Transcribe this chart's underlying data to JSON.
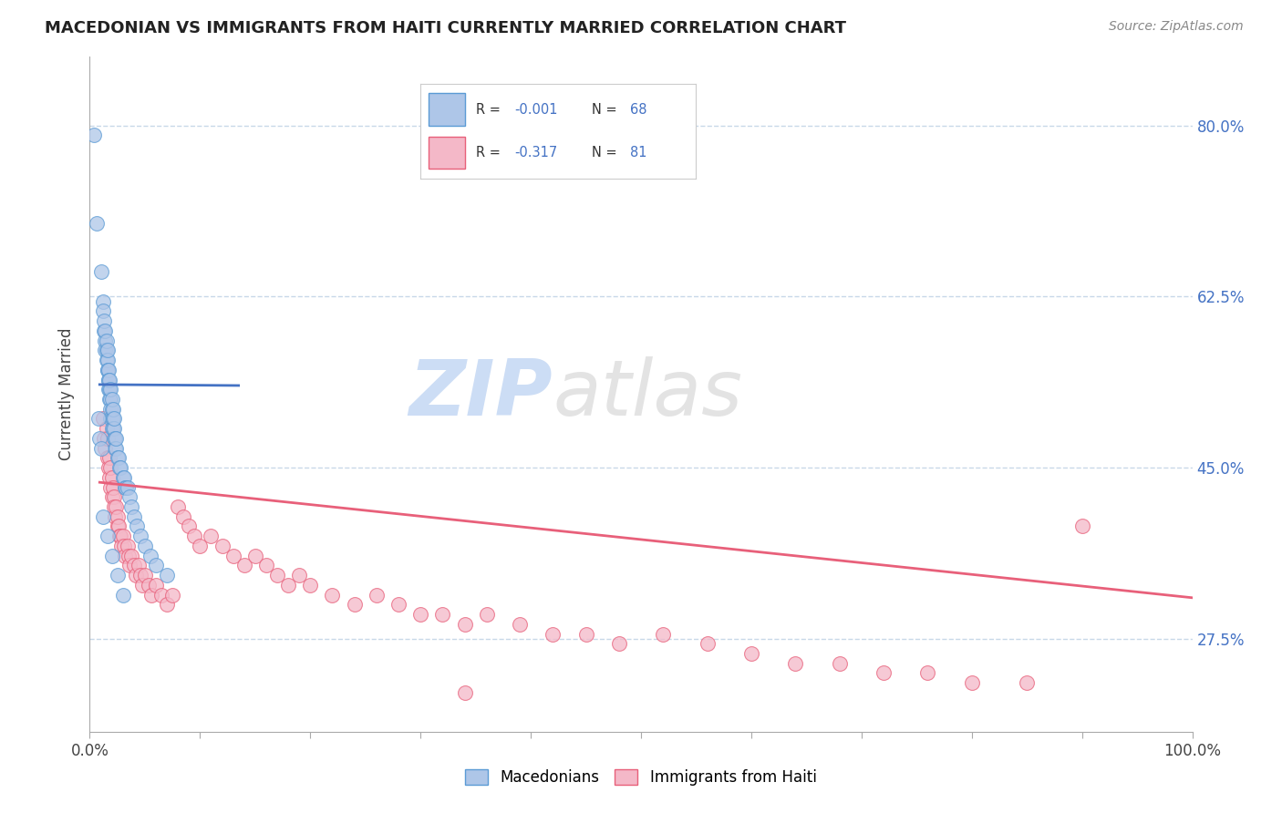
{
  "title": "MACEDONIAN VS IMMIGRANTS FROM HAITI CURRENTLY MARRIED CORRELATION CHART",
  "source": "Source: ZipAtlas.com",
  "ylabel": "Currently Married",
  "xlim": [
    0.0,
    1.0
  ],
  "ylim": [
    0.18,
    0.87
  ],
  "yticks": [
    0.275,
    0.45,
    0.625,
    0.8
  ],
  "ytick_labels": [
    "27.5%",
    "45.0%",
    "62.5%",
    "80.0%"
  ],
  "legend_label1": "Macedonians",
  "legend_label2": "Immigrants from Haiti",
  "blue_color": "#aec6e8",
  "pink_color": "#f4b8c8",
  "blue_edge": "#5b9bd5",
  "pink_edge": "#e8607a",
  "trend_blue": "#4472c4",
  "trend_pink": "#e8607a",
  "grid_color": "#c8d8e8",
  "watermark": "ZIPatlas",
  "watermark_blue": "#ccddf5",
  "watermark_gray": "#c8c8c8",
  "blue_scatter_x": [
    0.004,
    0.006,
    0.01,
    0.012,
    0.012,
    0.013,
    0.013,
    0.014,
    0.014,
    0.014,
    0.015,
    0.015,
    0.015,
    0.016,
    0.016,
    0.016,
    0.016,
    0.017,
    0.017,
    0.017,
    0.017,
    0.018,
    0.018,
    0.018,
    0.019,
    0.019,
    0.019,
    0.019,
    0.02,
    0.02,
    0.02,
    0.02,
    0.021,
    0.021,
    0.021,
    0.022,
    0.022,
    0.022,
    0.023,
    0.023,
    0.024,
    0.024,
    0.025,
    0.026,
    0.027,
    0.028,
    0.03,
    0.031,
    0.032,
    0.033,
    0.034,
    0.036,
    0.038,
    0.04,
    0.043,
    0.046,
    0.05,
    0.055,
    0.06,
    0.07,
    0.012,
    0.016,
    0.02,
    0.025,
    0.03,
    0.008,
    0.009,
    0.01
  ],
  "blue_scatter_y": [
    0.79,
    0.7,
    0.65,
    0.62,
    0.61,
    0.59,
    0.6,
    0.58,
    0.59,
    0.57,
    0.57,
    0.58,
    0.56,
    0.55,
    0.56,
    0.57,
    0.55,
    0.54,
    0.55,
    0.53,
    0.54,
    0.53,
    0.52,
    0.54,
    0.52,
    0.51,
    0.53,
    0.5,
    0.51,
    0.52,
    0.5,
    0.49,
    0.5,
    0.49,
    0.51,
    0.48,
    0.49,
    0.5,
    0.48,
    0.47,
    0.47,
    0.48,
    0.46,
    0.46,
    0.45,
    0.45,
    0.44,
    0.44,
    0.43,
    0.43,
    0.43,
    0.42,
    0.41,
    0.4,
    0.39,
    0.38,
    0.37,
    0.36,
    0.35,
    0.34,
    0.4,
    0.38,
    0.36,
    0.34,
    0.32,
    0.5,
    0.48,
    0.47
  ],
  "pink_scatter_x": [
    0.012,
    0.013,
    0.014,
    0.015,
    0.016,
    0.016,
    0.017,
    0.018,
    0.018,
    0.019,
    0.019,
    0.02,
    0.02,
    0.021,
    0.022,
    0.022,
    0.023,
    0.024,
    0.025,
    0.025,
    0.026,
    0.027,
    0.028,
    0.029,
    0.03,
    0.031,
    0.032,
    0.034,
    0.035,
    0.036,
    0.038,
    0.04,
    0.042,
    0.044,
    0.046,
    0.048,
    0.05,
    0.053,
    0.056,
    0.06,
    0.065,
    0.07,
    0.075,
    0.08,
    0.085,
    0.09,
    0.095,
    0.1,
    0.11,
    0.12,
    0.13,
    0.14,
    0.15,
    0.16,
    0.17,
    0.18,
    0.19,
    0.2,
    0.22,
    0.24,
    0.26,
    0.28,
    0.3,
    0.32,
    0.34,
    0.36,
    0.39,
    0.42,
    0.45,
    0.48,
    0.52,
    0.56,
    0.6,
    0.64,
    0.68,
    0.72,
    0.76,
    0.8,
    0.85,
    0.9,
    0.34
  ],
  "pink_scatter_y": [
    0.5,
    0.48,
    0.47,
    0.49,
    0.46,
    0.48,
    0.45,
    0.46,
    0.44,
    0.45,
    0.43,
    0.44,
    0.42,
    0.43,
    0.42,
    0.41,
    0.4,
    0.41,
    0.39,
    0.4,
    0.39,
    0.38,
    0.38,
    0.37,
    0.38,
    0.37,
    0.36,
    0.37,
    0.36,
    0.35,
    0.36,
    0.35,
    0.34,
    0.35,
    0.34,
    0.33,
    0.34,
    0.33,
    0.32,
    0.33,
    0.32,
    0.31,
    0.32,
    0.41,
    0.4,
    0.39,
    0.38,
    0.37,
    0.38,
    0.37,
    0.36,
    0.35,
    0.36,
    0.35,
    0.34,
    0.33,
    0.34,
    0.33,
    0.32,
    0.31,
    0.32,
    0.31,
    0.3,
    0.3,
    0.29,
    0.3,
    0.29,
    0.28,
    0.28,
    0.27,
    0.28,
    0.27,
    0.26,
    0.25,
    0.25,
    0.24,
    0.24,
    0.23,
    0.23,
    0.39,
    0.22
  ],
  "blue_trend_x": [
    0.009,
    0.135
  ],
  "blue_trend_y": [
    0.535,
    0.534
  ],
  "pink_trend_x": [
    0.009,
    1.0
  ],
  "pink_trend_y": [
    0.435,
    0.317
  ]
}
